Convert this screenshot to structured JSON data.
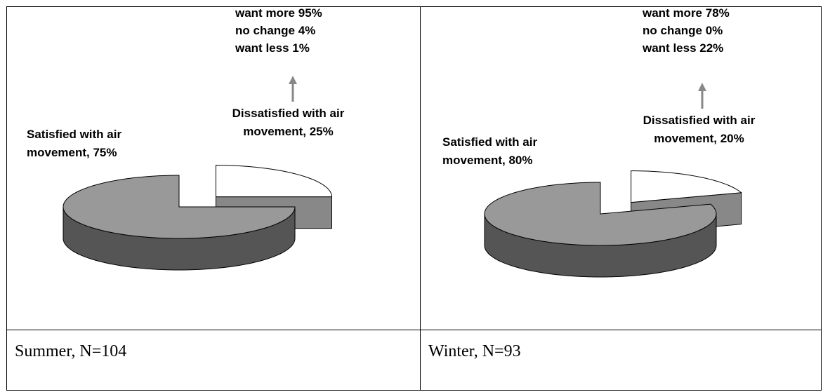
{
  "chart_data": [
    {
      "type": "pie3d",
      "labels": [
        "Satisfied with air movement, 75%",
        "Dissatisfied with air movement, 25%"
      ],
      "values": [
        75,
        25
      ],
      "colors": [
        "#999999",
        "#ffffff"
      ],
      "side_colors": [
        "#555555",
        "#888888"
      ],
      "exploded": [
        false,
        true
      ],
      "annotations": [
        "want more 95%",
        "no change 4%",
        "want less 1%"
      ]
    },
    {
      "type": "pie3d",
      "labels": [
        "Satisfied with air movement, 80%",
        "Dissatisfied with air movement, 20%"
      ],
      "values": [
        80,
        20
      ],
      "colors": [
        "#999999",
        "#ffffff"
      ],
      "side_colors": [
        "#555555",
        "#888888"
      ],
      "exploded": [
        false,
        true
      ],
      "annotations": [
        "want more 78%",
        "no change 0%",
        "want less 22%"
      ]
    }
  ],
  "captions": [
    "Summer, N=104",
    "Winter, N=93"
  ]
}
